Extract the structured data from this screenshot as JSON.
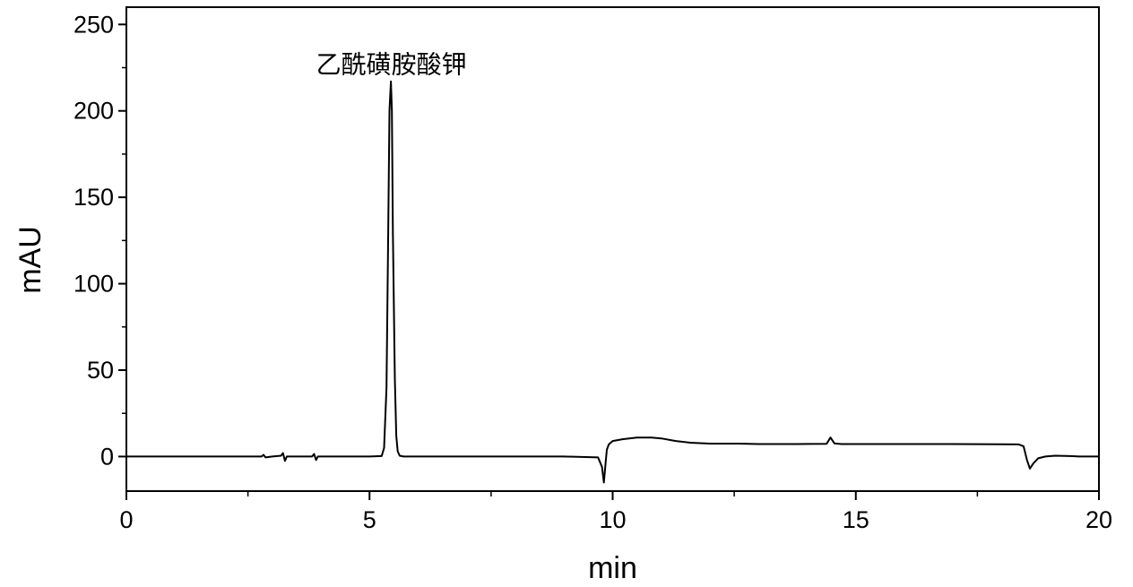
{
  "chart_data": {
    "type": "line",
    "xlabel": "min",
    "ylabel": "mAU",
    "xlim": [
      0,
      20
    ],
    "ylim": [
      -20,
      260
    ],
    "x_major_ticks": [
      0,
      5,
      10,
      15,
      20
    ],
    "x_minor_ticks": [
      2.5,
      7.5,
      12.5,
      17.5
    ],
    "y_major_ticks": [
      0,
      50,
      100,
      150,
      200,
      250
    ],
    "y_minor_ticks": [
      25,
      75,
      125,
      175,
      225
    ],
    "grid": false,
    "line_color": "#000000",
    "annotations": [
      {
        "text": "乙酰磺胺酸钾",
        "x": 5.45,
        "y": 222
      }
    ],
    "series": [
      {
        "x": [
          0,
          1.0,
          2.0,
          2.78,
          2.82,
          2.86,
          3.0,
          3.18,
          3.22,
          3.26,
          3.3,
          3.5,
          3.82,
          3.86,
          3.9,
          3.94,
          4.0,
          4.5,
          5.0,
          5.25,
          5.3,
          5.35,
          5.38,
          5.41,
          5.44,
          5.46,
          5.48,
          5.52,
          5.55,
          5.58,
          5.62,
          5.7,
          6.0,
          7.0,
          8.0,
          9.0,
          9.7,
          9.78,
          9.82,
          9.85,
          9.88,
          9.92,
          10.0,
          10.2,
          10.5,
          10.8,
          11.0,
          11.3,
          11.6,
          12.0,
          12.6,
          13.0,
          13.5,
          14.0,
          14.4,
          14.48,
          14.56,
          14.7,
          15.0,
          16.0,
          17.0,
          18.0,
          18.35,
          18.45,
          18.52,
          18.58,
          18.65,
          18.75,
          18.9,
          19.1,
          19.4,
          19.6,
          20.0
        ],
        "y": [
          0,
          0,
          0,
          0,
          1.0,
          -0.5,
          0,
          0.5,
          2.0,
          -2.5,
          0,
          0,
          0,
          1.5,
          -2.0,
          0,
          0,
          0,
          0,
          0.3,
          5,
          40,
          120,
          200,
          217,
          200,
          130,
          45,
          12,
          3,
          0.5,
          0,
          0,
          0,
          0,
          0,
          -0.5,
          -6,
          -15,
          -5,
          4,
          7,
          9,
          10,
          11,
          11,
          10.5,
          9,
          8,
          7.5,
          7.5,
          7.2,
          7.2,
          7.3,
          7.4,
          11,
          7.6,
          7.2,
          7.2,
          7.2,
          7.2,
          7.1,
          7.0,
          6.0,
          -2,
          -7,
          -4,
          -1,
          0,
          0.5,
          0.3,
          0,
          0
        ]
      }
    ]
  }
}
